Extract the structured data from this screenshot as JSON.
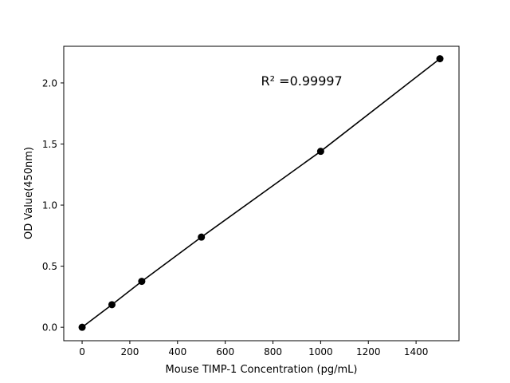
{
  "chart_data": {
    "type": "line",
    "title": "",
    "xlabel": "Mouse TIMP-1 Concentration (pg/mL)",
    "ylabel": "OD Value(450nm)",
    "xlim": [
      -77,
      1580
    ],
    "ylim": [
      -0.11,
      2.3
    ],
    "xticks": [
      0,
      200,
      400,
      600,
      800,
      1000,
      1200,
      1400
    ],
    "xtick_labels": [
      "0",
      "200",
      "400",
      "600",
      "800",
      "1000",
      "1200",
      "1400"
    ],
    "yticks": [
      0.0,
      0.5,
      1.0,
      1.5,
      2.0
    ],
    "ytick_labels": [
      "0.0",
      "0.5",
      "1.0",
      "1.5",
      "2.0"
    ],
    "grid": false,
    "series": [
      {
        "x": [
          0,
          125,
          250,
          500,
          1000,
          1500
        ],
        "y": [
          0.0,
          0.185,
          0.376,
          0.738,
          1.44,
          2.198
        ],
        "color": "#000000",
        "marker": "circle"
      }
    ],
    "annotation": {
      "text": "R² =0.99997",
      "x": 750,
      "y": 1.98
    }
  }
}
